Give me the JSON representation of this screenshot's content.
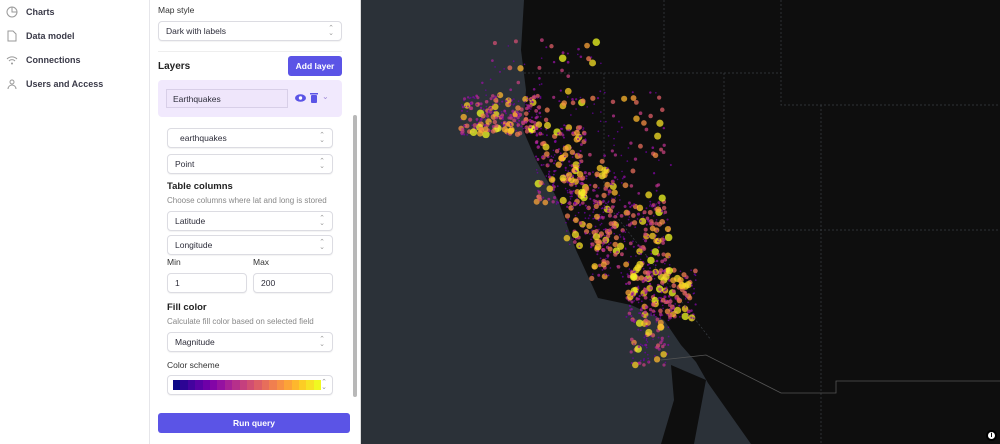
{
  "nav": {
    "items": [
      {
        "label": "Charts",
        "icon": "pie-chart-icon"
      },
      {
        "label": "Data model",
        "icon": "document-icon"
      },
      {
        "label": "Connections",
        "icon": "wifi-icon"
      },
      {
        "label": "Users and Access",
        "icon": "users-icon"
      }
    ]
  },
  "panel": {
    "map_style_label": "Map style",
    "map_style_value": "Dark with labels",
    "layers_title": "Layers",
    "add_layer": "Add layer",
    "layer_name": "Earthquakes",
    "dataset": "earthquakes",
    "geometry": "Point",
    "table_columns_title": "Table columns",
    "table_columns_hint": "Choose columns where lat and long is stored",
    "lat_column": "Latitude",
    "lng_column": "Longitude",
    "min_label": "Min",
    "max_label": "Max",
    "min_value": "1",
    "max_value": "200",
    "fill_color_title": "Fill color",
    "fill_color_hint": "Calculate fill color based on selected field",
    "fill_field": "Magnitude",
    "color_scheme_label": "Color scheme",
    "color_scheme": [
      "#0d0887",
      "#2c0594",
      "#43039e",
      "#5901a5",
      "#6e00a8",
      "#8305a7",
      "#9511a1",
      "#a72197",
      "#b6308b",
      "#c5407e",
      "#d14e72",
      "#dd5e66",
      "#e76e5b",
      "#f07f4f",
      "#f79044",
      "#fca338",
      "#feb72d",
      "#fccd25",
      "#f7e225",
      "#f0f921"
    ],
    "run_query": "Run query"
  },
  "map": {
    "ocean": "#2b3138",
    "land": "#0e0e0e",
    "attribution_icon": "info-icon"
  }
}
